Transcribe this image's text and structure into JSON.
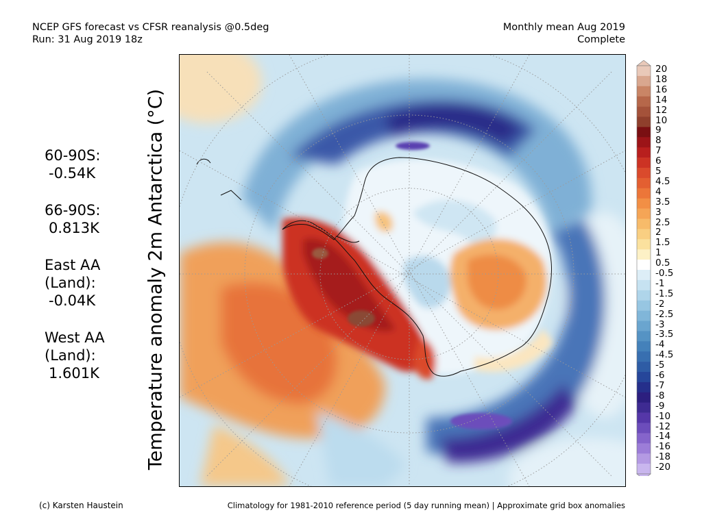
{
  "header": {
    "line1": "NCEP GFS forecast vs CFSR reanalysis @0.5deg",
    "line2": "Run: 31 Aug 2019 18z",
    "period": "Monthly mean Aug 2019",
    "status": "Complete"
  },
  "map": {
    "title": "Temperature anomaly 2m Antarctica (°C)",
    "projection": "south polar stereographic",
    "graticule": "dotted"
  },
  "stats": [
    {
      "region": "60-90S:",
      "value": "-0.54K"
    },
    {
      "region": "66-90S:",
      "value": "0.813K"
    },
    {
      "region": "East AA (Land):",
      "value": "-0.04K"
    },
    {
      "region": "West AA (Land):",
      "value": "1.601K"
    }
  ],
  "colorbar": {
    "labels": [
      "20",
      "18",
      "16",
      "14",
      "12",
      "10",
      "9",
      "8",
      "7",
      "6",
      "5",
      "4.5",
      "4",
      "3.5",
      "3",
      "2.5",
      "2",
      "1.5",
      "1",
      "0.5",
      "-0.5",
      "-1",
      "-1.5",
      "-2",
      "-2.5",
      "-3",
      "-3.5",
      "-4",
      "-4.5",
      "-5",
      "-6",
      "-7",
      "-8",
      "-9",
      "-10",
      "-12",
      "-14",
      "-16",
      "-18",
      "-20"
    ],
    "colors": [
      "#e9c9b9",
      "#d9a78f",
      "#c98566",
      "#b6674a",
      "#a4523a",
      "#8f3f2c",
      "#7a0f12",
      "#9c1418",
      "#b81f1e",
      "#cc3324",
      "#da4a2c",
      "#e35f31",
      "#ec7639",
      "#f28f45",
      "#f5a556",
      "#f7bb6a",
      "#f9cf82",
      "#fbe19e",
      "#fdf1c6",
      "#ffffff",
      "#ddeef7",
      "#c6e2f1",
      "#afd5ea",
      "#97c6e2",
      "#80b6d9",
      "#6aa5cf",
      "#5593c4",
      "#4481ba",
      "#386fb0",
      "#2e5ca5",
      "#26469a",
      "#252f8b",
      "#2c1f7f",
      "#3e2b92",
      "#5537a8",
      "#6c4dbb",
      "#8564cb",
      "#9c7dd8",
      "#b49ae3",
      "#c9b6ee"
    ]
  },
  "footer": {
    "credit": "(c) Karsten Haustein",
    "note": "Climatology for 1981-2010 reference period (5 day running mean) | Approximate grid box anomalies"
  }
}
